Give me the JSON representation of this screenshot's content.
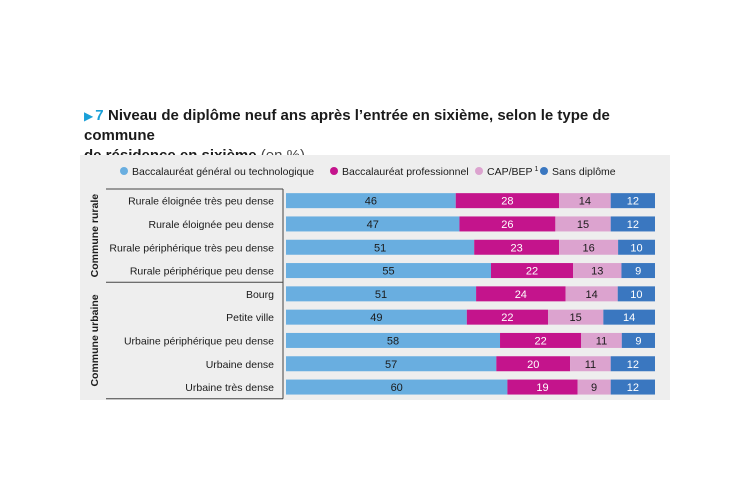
{
  "figure": {
    "number": "7",
    "title_line1": "Niveau de diplôme neuf ans après l’entrée en sixième, selon le type de commune",
    "title_line2": "de résidence en sixième",
    "unit": "(en %)"
  },
  "chart_data": {
    "type": "bar",
    "orientation": "horizontal",
    "stacked": true,
    "legend_position": "top",
    "series": [
      {
        "name": "Baccalauréat général ou technologique",
        "color": "#69aee0",
        "text_color": "#1b1b1b",
        "values": [
          46,
          47,
          51,
          55,
          51,
          49,
          58,
          57,
          60
        ]
      },
      {
        "name": "Baccalauréat professionnel",
        "color": "#c4148c",
        "text_color": "#ffffff",
        "values": [
          28,
          26,
          23,
          22,
          24,
          22,
          22,
          20,
          19
        ]
      },
      {
        "name": "CAP/BEP",
        "superscript": "1",
        "color": "#dca3cf",
        "text_color": "#1b1b1b",
        "values": [
          14,
          15,
          16,
          13,
          14,
          15,
          11,
          11,
          9
        ]
      },
      {
        "name": "Sans diplôme",
        "color": "#3a77c0",
        "text_color": "#ffffff",
        "values": [
          12,
          12,
          10,
          9,
          10,
          14,
          9,
          12,
          12
        ]
      }
    ],
    "categories": [
      "Rurale éloignée très peu dense",
      "Rurale éloignée peu dense",
      "Rurale périphérique très peu dense",
      "Rurale périphérique peu dense",
      "Bourg",
      "Petite ville",
      "Urbaine périphérique peu dense",
      "Urbaine dense",
      "Urbaine très dense"
    ],
    "groups": [
      {
        "label": "Commune rurale",
        "count": 4
      },
      {
        "label": "Commune urbaine",
        "count": 5
      }
    ]
  }
}
